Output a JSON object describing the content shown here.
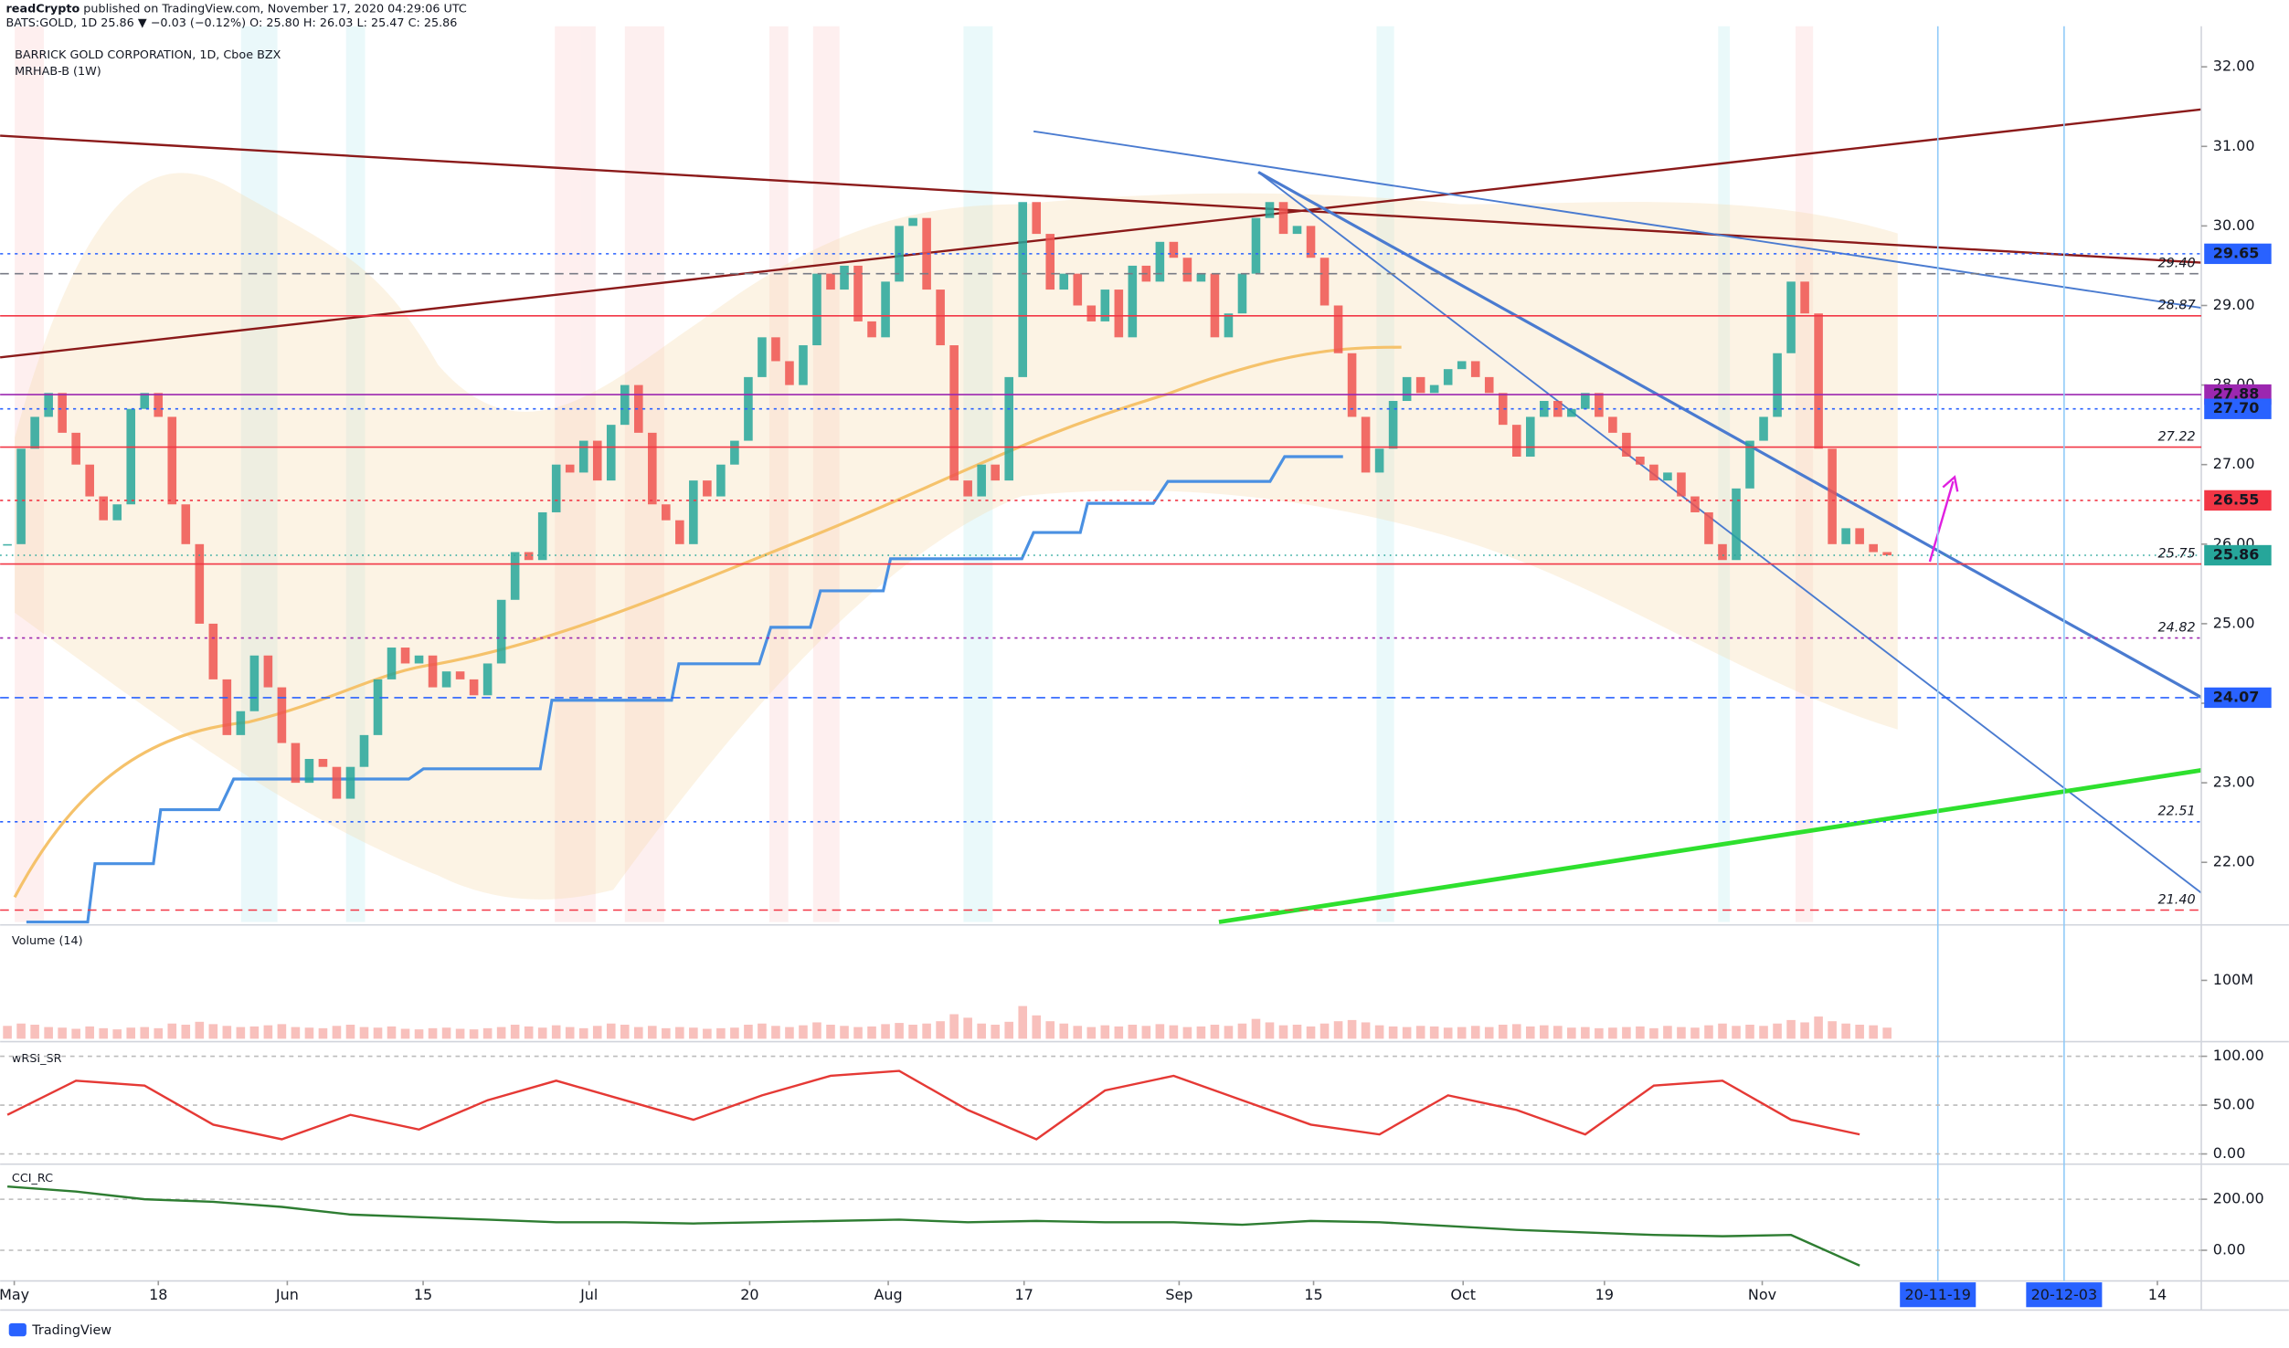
{
  "header": {
    "publisher": "readCrypto",
    "published": "published on TradingView.com, November 17, 2020 04:29:06 UTC",
    "ticker": "BATS:GOLD, 1D  25.86 ▼ −0.03 (−0.12%)  O: 25.80  H: 26.03  L: 25.47  C: 25.86"
  },
  "footer": {
    "brand": "TradingView"
  },
  "chart_data": [
    {
      "type": "candlestick",
      "title": "BARRICK GOLD CORPORATION, 1D, Cboe BZX",
      "subtitle": "MRHAB-B (1W)",
      "up_color": "#26a69a",
      "down_color": "#ef5350",
      "xlim": [
        -0.53,
        159.9
      ],
      "ylim": [
        21.25,
        32.51
      ],
      "yticks": [
        {
          "value": 22,
          "label": "22.00"
        },
        {
          "value": 23,
          "label": "23.00"
        },
        {
          "value": 24,
          "label": "24.00"
        },
        {
          "value": 25,
          "label": "25.00"
        },
        {
          "value": 26,
          "label": "26.00"
        },
        {
          "value": 27,
          "label": "27.00"
        },
        {
          "value": 28,
          "label": "28.00"
        },
        {
          "value": 29,
          "label": "29.00"
        },
        {
          "value": 30,
          "label": "30.00"
        },
        {
          "value": 31,
          "label": "31.00"
        },
        {
          "value": 32,
          "label": "32.00"
        }
      ],
      "xticks": [
        {
          "value": 0.5,
          "label": "May"
        },
        {
          "value": 11,
          "label": "18"
        },
        {
          "value": 20.4,
          "label": "Jun"
        },
        {
          "value": 30.3,
          "label": "15"
        },
        {
          "value": 42.4,
          "label": "Jul"
        },
        {
          "value": 54.1,
          "label": "20"
        },
        {
          "value": 64.2,
          "label": "Aug"
        },
        {
          "value": 74.1,
          "label": "17"
        },
        {
          "value": 85.4,
          "label": "Sep"
        },
        {
          "value": 95.2,
          "label": "15"
        },
        {
          "value": 106.1,
          "label": "Oct"
        },
        {
          "value": 116.4,
          "label": "19"
        },
        {
          "value": 127.9,
          "label": "Nov"
        },
        {
          "value": 156.7,
          "label": "14"
        }
      ],
      "marked_dates": [
        {
          "value": 140.7,
          "label": "20-11-19"
        },
        {
          "value": 149.9,
          "label": "20-12-03"
        }
      ],
      "values": [
        26.0,
        27.2,
        27.6,
        27.9,
        27.4,
        27.0,
        26.6,
        26.3,
        26.5,
        27.7,
        27.9,
        27.6,
        26.5,
        26.0,
        25.0,
        24.3,
        23.6,
        23.9,
        24.6,
        24.2,
        23.5,
        23.0,
        23.3,
        23.2,
        22.8,
        23.2,
        23.6,
        24.3,
        24.7,
        24.5,
        24.6,
        24.2,
        24.4,
        24.3,
        24.1,
        24.5,
        25.3,
        25.9,
        25.8,
        26.4,
        27.0,
        26.9,
        27.3,
        26.8,
        27.5,
        28.0,
        27.4,
        26.5,
        26.3,
        26.0,
        26.8,
        26.6,
        27.0,
        27.3,
        28.1,
        28.6,
        28.3,
        28.0,
        28.5,
        29.4,
        29.2,
        29.5,
        28.8,
        28.6,
        29.3,
        30.0,
        30.1,
        29.2,
        28.5,
        26.8,
        26.6,
        27.0,
        26.8,
        28.1,
        30.3,
        29.9,
        29.2,
        29.4,
        29.0,
        28.8,
        29.2,
        28.6,
        29.5,
        29.3,
        29.8,
        29.6,
        29.3,
        29.4,
        28.6,
        28.9,
        29.4,
        30.1,
        30.3,
        29.9,
        30.0,
        29.6,
        29.0,
        28.4,
        27.6,
        26.9,
        27.2,
        27.8,
        28.1,
        27.9,
        28.0,
        28.2,
        28.3,
        28.1,
        27.9,
        27.5,
        27.1,
        27.6,
        27.8,
        27.6,
        27.7,
        27.9,
        27.6,
        27.4,
        27.1,
        27.0,
        26.8,
        26.9,
        26.6,
        26.4,
        26.0,
        25.8,
        26.7,
        27.3,
        27.6,
        28.4,
        29.3,
        28.9,
        27.2,
        26.0,
        26.2,
        26.0,
        25.9,
        25.86
      ],
      "levels": [
        {
          "value": 29.65,
          "label": "29.65",
          "kind": "badge",
          "color": "#2962ff",
          "dash": "2 3"
        },
        {
          "value": 29.4,
          "label": "29.40",
          "kind": "note",
          "color": "#787b86",
          "dash": "6 4"
        },
        {
          "value": 28.87,
          "label": "28.87",
          "kind": "note",
          "color": "#f23645",
          "dash": "none"
        },
        {
          "value": 27.88,
          "label": "27.88",
          "kind": "badge",
          "color": "#9c27b0",
          "dash": "none"
        },
        {
          "value": 27.7,
          "label": "27.70",
          "kind": "badge",
          "color": "#2962ff",
          "dash": "2 3"
        },
        {
          "value": 27.22,
          "label": "27.22",
          "kind": "note",
          "color": "#f23645",
          "dash": "none"
        },
        {
          "value": 26.55,
          "label": "26.55",
          "kind": "badge",
          "color": "#f23645",
          "dash": "2 3"
        },
        {
          "value": 25.86,
          "label": "25.86",
          "kind": "badge",
          "color": "#26a69a",
          "dash": "1 3"
        },
        {
          "value": 25.75,
          "label": "25.75",
          "kind": "note",
          "color": "#f23645",
          "dash": "none"
        },
        {
          "value": 24.82,
          "label": "24.82",
          "kind": "note",
          "color": "#9c27b0",
          "dash": "2 3"
        },
        {
          "value": 24.07,
          "label": "24.07",
          "kind": "badge",
          "color": "#2962ff",
          "dash": "6 4"
        },
        {
          "value": 22.51,
          "label": "22.51",
          "kind": "note",
          "color": "#2962ff",
          "dash": "2 3"
        },
        {
          "value": 21.4,
          "label": "21.40",
          "kind": "note",
          "color": "#f23645",
          "dash": "6 4"
        }
      ]
    },
    {
      "type": "bar",
      "title": "Volume (14)",
      "color": "#f5a5a0",
      "ylim": [
        0,
        190000000
      ],
      "yticks": [
        {
          "value": 100000000,
          "label": "100M"
        }
      ],
      "values": [
        22000000.0,
        26000000.0,
        24000000.0,
        20000000.0,
        19000000.0,
        17000000.0,
        21000000.0,
        18000000.0,
        16000000.0,
        19000000.0,
        20000000.0,
        18000000.0,
        26000000.0,
        24000000.0,
        29000000.0,
        25000000.0,
        22000000.0,
        20000000.0,
        21000000.0,
        23000000.0,
        25000000.0,
        20000000.0,
        19000000.0,
        18000000.0,
        22000000.0,
        24000000.0,
        20000000.0,
        19000000.0,
        21000000.0,
        17000000.0,
        16000000.0,
        18000000.0,
        19000000.0,
        17000000.0,
        16000000.0,
        18000000.0,
        20000000.0,
        24000000.0,
        21000000.0,
        19000000.0,
        23000000.0,
        20000000.0,
        18000000.0,
        22000000.0,
        26000000.0,
        24000000.0,
        20000000.0,
        22000000.0,
        18000000.0,
        20000000.0,
        19000000.0,
        17000000.0,
        18000000.0,
        19000000.0,
        24000000.0,
        26000000.0,
        22000000.0,
        20000000.0,
        23000000.0,
        28000000.0,
        24000000.0,
        22000000.0,
        20000000.0,
        21000000.0,
        25000000.0,
        27000000.0,
        24000000.0,
        26000000.0,
        30000000.0,
        42000000.0,
        36000000.0,
        26000000.0,
        24000000.0,
        29000000.0,
        56000000.0,
        40000000.0,
        30000000.0,
        26000000.0,
        22000000.0,
        20000000.0,
        23000000.0,
        21000000.0,
        24000000.0,
        22000000.0,
        25000000.0,
        23000000.0,
        20000000.0,
        21000000.0,
        24000000.0,
        22000000.0,
        26000000.0,
        34000000.0,
        28000000.0,
        23000000.0,
        24000000.0,
        21000000.0,
        26000000.0,
        30000000.0,
        32000000.0,
        28000000.0,
        23000000.0,
        21000000.0,
        20000000.0,
        22000000.0,
        21000000.0,
        19000000.0,
        20000000.0,
        22000000.0,
        20000000.0,
        24000000.0,
        25000000.0,
        21000000.0,
        23000000.0,
        22000000.0,
        19000000.0,
        20000000.0,
        18000000.0,
        19000000.0,
        20000000.0,
        21000000.0,
        18000000.0,
        22000000.0,
        20000000.0,
        19000000.0,
        23000000.0,
        26000000.0,
        22000000.0,
        24000000.0,
        22000000.0,
        26000000.0,
        32000000.0,
        28000000.0,
        38000000.0,
        30000000.0,
        26000000.0,
        24000000.0,
        23000000.0,
        19000000.0
      ]
    },
    {
      "type": "line",
      "title": "wRSI_SR",
      "color": "#e53935",
      "grid": true,
      "ylim": [
        -7.5,
        112
      ],
      "yticks": [
        {
          "value": 0,
          "label": "0.00"
        },
        {
          "value": 50,
          "label": "50.00"
        },
        {
          "value": 100,
          "label": "100.00"
        }
      ],
      "x": [
        0,
        5,
        10,
        15,
        20,
        25,
        30,
        35,
        40,
        45,
        50,
        55,
        60,
        65,
        70,
        75,
        80,
        85,
        90,
        95,
        100,
        105,
        110,
        115,
        120,
        125,
        130,
        135
      ],
      "values": [
        40,
        75,
        70,
        30,
        15,
        40,
        25,
        55,
        75,
        55,
        35,
        60,
        80,
        85,
        45,
        15,
        65,
        80,
        55,
        30,
        20,
        60,
        45,
        20,
        70,
        75,
        35,
        20
      ]
    },
    {
      "type": "line",
      "title": "CCI_RC",
      "color": "#2e7d32",
      "grid": true,
      "ylim": [
        -120,
        326
      ],
      "yticks": [
        {
          "value": 0,
          "label": "0.00"
        },
        {
          "value": 200,
          "label": "200.00"
        }
      ],
      "x": [
        0,
        5,
        10,
        15,
        20,
        25,
        30,
        35,
        40,
        45,
        50,
        55,
        60,
        65,
        70,
        75,
        80,
        85,
        90,
        95,
        100,
        105,
        110,
        115,
        120,
        125,
        130,
        135
      ],
      "values": [
        250,
        230,
        200,
        190,
        170,
        140,
        130,
        120,
        110,
        110,
        105,
        110,
        115,
        120,
        110,
        115,
        110,
        110,
        100,
        115,
        110,
        95,
        80,
        70,
        60,
        55,
        60,
        -60
      ]
    }
  ]
}
